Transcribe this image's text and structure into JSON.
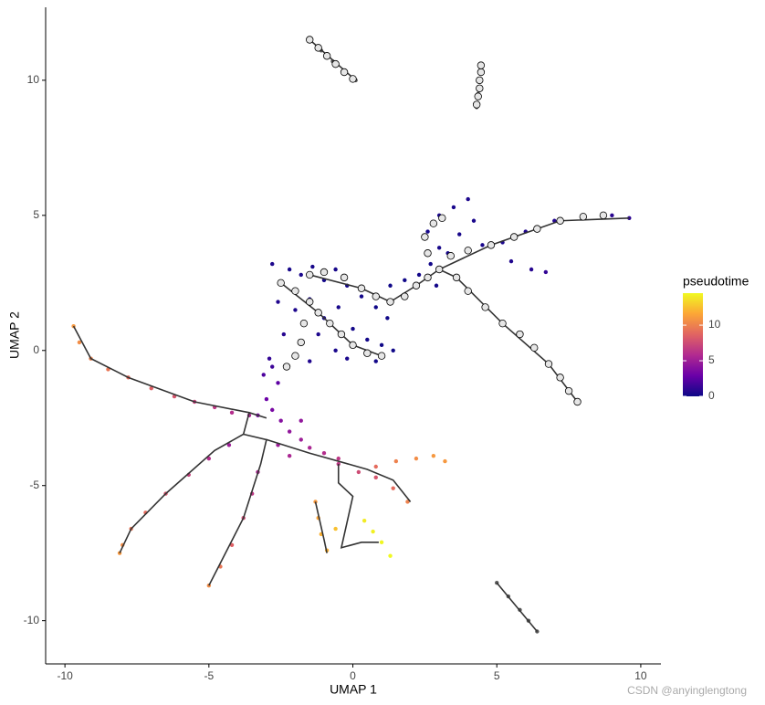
{
  "chart_data": {
    "type": "scatter",
    "xlabel": "UMAP 1",
    "ylabel": "UMAP 2",
    "xlim": [
      -10.67,
      10.7
    ],
    "ylim": [
      -11.6,
      12.7
    ],
    "xticks": [
      -10,
      -5,
      0,
      5,
      10
    ],
    "yticks": [
      -10,
      -5,
      0,
      5,
      10
    ],
    "grid": false,
    "na_color": "#595959",
    "points": {
      "x": [
        -2.8,
        -2.5,
        -2.2,
        -1.8,
        -1.4,
        -1.0,
        -0.6,
        -0.2,
        0.3,
        0.8,
        1.2,
        -2.6,
        -2.0,
        -1.5,
        -1.0,
        -0.5,
        0,
        0.5,
        1.0,
        1.4,
        -2.4,
        -1.8,
        -1.2,
        -0.6,
        -0.2,
        -2.8,
        -3.1,
        -2.6,
        -2.9,
        -1.5,
        0.8,
        1.3,
        1.8,
        2.3,
        2.7,
        3.0,
        2.6,
        3.0,
        3.5,
        4.0,
        4.2,
        3.7,
        3.3,
        2.9,
        4.5,
        5.2,
        6.0,
        7.0,
        8.0,
        9.0,
        9.6,
        5.5,
        6.2,
        6.7,
        -3.0,
        -2.8,
        -2.5,
        -2.2,
        -1.8,
        -1.5,
        -2.6,
        -2.2,
        -1.0,
        -0.5,
        -1.8,
        -3.3,
        -9.7,
        -9.5,
        -9.1,
        -8.5,
        -7.8,
        -7.0,
        -6.2,
        -5.5,
        -4.8,
        -4.2,
        -3.6,
        -4.3,
        -5.0,
        -5.7,
        -6.5,
        -7.2,
        -7.7,
        -8.0,
        -8.1,
        -3.3,
        -3.5,
        -3.8,
        -4.2,
        -4.6,
        -5.0,
        -0.5,
        0.2,
        0.8,
        1.4,
        1.9,
        0.8,
        1.5,
        2.2,
        2.8,
        3.2,
        -1.3,
        -1.2,
        -1.1,
        -0.9,
        -0.6,
        0.4,
        0.7,
        1.0,
        1.3,
        -1.5,
        -1.1,
        -0.7,
        -0.3,
        0.1,
        4.3,
        4.35,
        4.4,
        4.45,
        5.0,
        5.4,
        5.8,
        6.1,
        6.4
      ],
      "y": [
        3.2,
        2.5,
        3.0,
        2.8,
        3.1,
        2.6,
        3.0,
        2.4,
        2.0,
        1.6,
        1.2,
        1.8,
        1.5,
        1.9,
        1.2,
        1.6,
        0.8,
        0.4,
        0.2,
        0,
        0.6,
        0.3,
        0.6,
        0,
        -0.3,
        -0.6,
        -0.9,
        -1.2,
        -0.3,
        -0.4,
        -0.4,
        2.4,
        2.6,
        2.8,
        3.2,
        3.8,
        4.4,
        5.0,
        5.3,
        5.6,
        4.8,
        4.3,
        3.6,
        2.4,
        3.9,
        4.0,
        4.4,
        4.8,
        5.0,
        5.0,
        4.9,
        3.3,
        3.0,
        2.9,
        -1.8,
        -2.2,
        -2.6,
        -3.0,
        -3.3,
        -3.6,
        -3.5,
        -3.9,
        -3.8,
        -4.0,
        -2.6,
        -2.4,
        0.9,
        0.3,
        -0.3,
        -0.7,
        -1.0,
        -1.4,
        -1.7,
        -1.9,
        -2.1,
        -2.3,
        -2.4,
        -3.5,
        -4.0,
        -4.6,
        -5.3,
        -6.0,
        -6.6,
        -7.2,
        -7.5,
        -4.5,
        -5.3,
        -6.2,
        -7.2,
        -8.0,
        -8.7,
        -4.2,
        -4.5,
        -4.7,
        -5.1,
        -5.6,
        -4.3,
        -4.1,
        -4.0,
        -3.9,
        -4.1,
        -5.6,
        -6.2,
        -6.8,
        -7.4,
        -6.6,
        -6.3,
        -6.7,
        -7.1,
        -7.6,
        11.5,
        11.1,
        10.7,
        10.3,
        10.0,
        9.0,
        9.5,
        10.0,
        10.5,
        -8.6,
        -9.1,
        -9.6,
        -10.0,
        -10.4
      ],
      "pseudotime": [
        0.5,
        0.4,
        0.3,
        0.4,
        0.3,
        0.2,
        0.3,
        0.2,
        0.2,
        0.1,
        0.1,
        0.6,
        0.5,
        0.4,
        0.3,
        0.3,
        0.2,
        0.2,
        0.1,
        0.1,
        0.8,
        0.7,
        0.5,
        0.4,
        0.4,
        1.5,
        2.0,
        2.5,
        1.2,
        0.6,
        0.2,
        0.1,
        0.1,
        0.2,
        0.2,
        0.3,
        0.3,
        0.4,
        0.4,
        0.5,
        0.4,
        0.3,
        0.3,
        0.2,
        0.4,
        0.5,
        0.6,
        0.7,
        0.8,
        0.9,
        1.0,
        0.6,
        0.8,
        1.2,
        3.0,
        3.5,
        4.0,
        4.5,
        5.0,
        5.5,
        5.0,
        5.5,
        6.0,
        6.5,
        4.5,
        3.5,
        11,
        10.5,
        10,
        9.5,
        9,
        8.5,
        8,
        7,
        6.5,
        6,
        5.5,
        5,
        6,
        7,
        8,
        9,
        9.5,
        10.5,
        11,
        5.5,
        6.5,
        7.5,
        8.5,
        9.5,
        10.5,
        6.5,
        7.5,
        8,
        9,
        10,
        9,
        10,
        10.5,
        11,
        11,
        11,
        11.5,
        12,
        12,
        12.5,
        14,
        14.2,
        14.4,
        14.5,
        null,
        null,
        null,
        null,
        null,
        null,
        null,
        null,
        null,
        null,
        null,
        null,
        null,
        null
      ]
    },
    "trajectory": [
      {
        "x": [
          -9.7,
          -9.1,
          -7.8,
          -5.5,
          -3.6,
          -3.0
        ],
        "y": [
          0.9,
          -0.3,
          -1.0,
          -1.9,
          -2.3,
          -2.5
        ]
      },
      {
        "x": [
          -3.6,
          -3.8,
          -4.8,
          -6.5,
          -7.7,
          -8.1
        ],
        "y": [
          -2.3,
          -3.1,
          -3.7,
          -5.3,
          -6.6,
          -7.5
        ]
      },
      {
        "x": [
          -3.8,
          -3.0,
          -3.2,
          -3.8,
          -5.0
        ],
        "y": [
          -3.1,
          -3.3,
          -4.2,
          -6.2,
          -8.7
        ]
      },
      {
        "x": [
          -3.0,
          -1.5,
          0.5,
          1.4,
          2.0
        ],
        "y": [
          -3.3,
          -3.8,
          -4.4,
          -4.8,
          -5.6
        ]
      },
      {
        "x": [
          -0.5,
          -0.5,
          0,
          -0.4,
          0.3,
          0.9
        ],
        "y": [
          -4.2,
          -4.9,
          -5.4,
          -7.3,
          -7.1,
          -7.1
        ]
      },
      {
        "x": [
          -1.3,
          -1.0,
          -0.9
        ],
        "y": [
          -5.6,
          -7.0,
          -7.5
        ]
      },
      {
        "x": [
          -1.5,
          0.1
        ],
        "y": [
          11.5,
          10.0
        ]
      },
      {
        "x": [
          5.0,
          6.4
        ],
        "y": [
          -8.6,
          -10.4
        ]
      },
      {
        "x": [
          -2.5,
          -1.2,
          0,
          1.0
        ],
        "y": [
          2.5,
          1.4,
          0.2,
          -0.2
        ]
      },
      {
        "x": [
          -1.5,
          0.3,
          1.3,
          2.2,
          3.0,
          4.8,
          7.2,
          9.6
        ],
        "y": [
          2.8,
          2.3,
          1.8,
          2.4,
          3.0,
          3.9,
          4.8,
          4.9
        ]
      },
      {
        "x": [
          3.0,
          3.6,
          5.2,
          6.8,
          7.8
        ],
        "y": [
          3.0,
          2.7,
          1.0,
          -0.5,
          -1.9
        ]
      }
    ],
    "nodes": {
      "x": [
        -1.5,
        -1.2,
        -0.9,
        -0.6,
        -0.3,
        0,
        4.3,
        4.35,
        4.4,
        4.4,
        4.45,
        4.45,
        -2.5,
        -2.0,
        -1.5,
        -1.2,
        -0.8,
        -0.4,
        0,
        0.5,
        1.0,
        -1.7,
        -1.8,
        -2.0,
        -2.3,
        -1.5,
        -1,
        -0.3,
        0.3,
        0.8,
        1.3,
        1.8,
        2.2,
        2.6,
        3.0,
        2.6,
        2.5,
        2.8,
        3.1,
        3.4,
        4.0,
        4.8,
        5.6,
        6.4,
        7.2,
        8.0,
        8.7,
        3.6,
        4.0,
        4.6,
        5.2,
        5.8,
        6.3,
        6.8,
        7.2,
        7.5,
        7.8
      ],
      "y": [
        11.5,
        11.2,
        10.9,
        10.6,
        10.3,
        10.05,
        9.1,
        9.4,
        9.7,
        10,
        10.3,
        10.55,
        2.5,
        2.2,
        1.8,
        1.4,
        1.0,
        0.6,
        0.2,
        -0.1,
        -0.2,
        1.0,
        0.3,
        -0.2,
        -0.6,
        2.8,
        2.9,
        2.7,
        2.3,
        2.0,
        1.8,
        2.0,
        2.4,
        2.7,
        3.0,
        3.6,
        4.2,
        4.7,
        4.9,
        3.5,
        3.7,
        3.9,
        4.2,
        4.5,
        4.8,
        4.95,
        5.0,
        2.7,
        2.2,
        1.6,
        1.0,
        0.6,
        0.1,
        -0.5,
        -1.0,
        -1.5,
        -1.9
      ]
    },
    "colorbar": {
      "title": "pseudotime",
      "lim": [
        0,
        14.5
      ],
      "ticks": [
        0,
        5,
        10
      ],
      "colors": [
        "#0d0887",
        "#6a00a8",
        "#b12a90",
        "#e16462",
        "#fca636",
        "#f0f921"
      ]
    },
    "annotations": [
      {
        "text": "CSDN @anyinglengtong"
      }
    ]
  }
}
